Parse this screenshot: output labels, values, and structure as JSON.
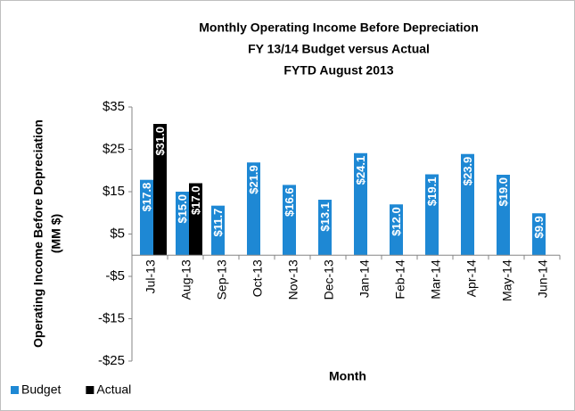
{
  "chart_data": {
    "type": "bar",
    "title": "Monthly Operating Income Before Depreciation",
    "subtitle": [
      "FY 13/14 Budget versus Actual",
      "FYTD August 2013"
    ],
    "ylabel": [
      "Operating Income Before Depreciation",
      "(MM $)"
    ],
    "xlabel": "Month",
    "categories": [
      "Jul-13",
      "Aug-13",
      "Sep-13",
      "Oct-13",
      "Nov-13",
      "Dec-13",
      "Jan-14",
      "Feb-14",
      "Mar-14",
      "Apr-14",
      "May-14",
      "Jun-14"
    ],
    "series": [
      {
        "name": "Budget",
        "color": "#1e88d4",
        "values": [
          17.8,
          15.0,
          11.7,
          21.9,
          16.6,
          13.1,
          24.1,
          12.0,
          19.1,
          23.9,
          19.0,
          9.9
        ],
        "value_labels": [
          "$17.8",
          "$15.0",
          "$11.7",
          "$21.9",
          "$16.6",
          "$13.1",
          "$24.1",
          "$12.0",
          "$19.1",
          "$23.9",
          "$19.0",
          "$9.9"
        ]
      },
      {
        "name": "Actual",
        "color": "#000000",
        "values": [
          31.0,
          17.0,
          null,
          null,
          null,
          null,
          null,
          null,
          null,
          null,
          null,
          null
        ],
        "value_labels": [
          "$31.0",
          "$17.0",
          null,
          null,
          null,
          null,
          null,
          null,
          null,
          null,
          null,
          null
        ]
      }
    ],
    "ylim": [
      -25,
      35
    ],
    "yticks": [
      {
        "value": -25,
        "label": "-$25"
      },
      {
        "value": -15,
        "label": "-$15"
      },
      {
        "value": -5,
        "label": "-$5"
      },
      {
        "value": 5,
        "label": "$5"
      },
      {
        "value": 15,
        "label": "$15"
      },
      {
        "value": 25,
        "label": "$25"
      },
      {
        "value": 35,
        "label": "$35"
      }
    ],
    "legend": "bottom-left"
  }
}
